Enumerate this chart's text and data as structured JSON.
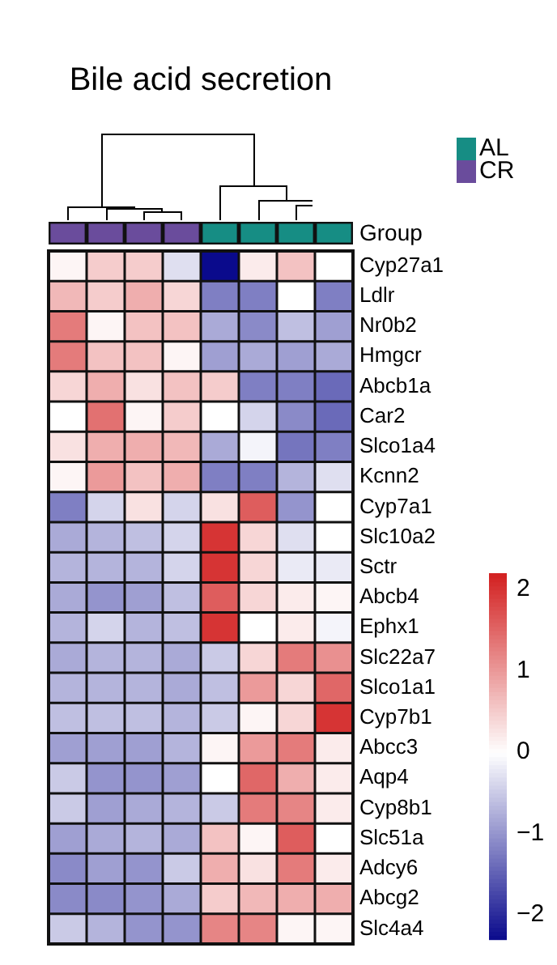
{
  "chart_data": {
    "type": "heatmap",
    "title": "Bile acid secretion",
    "categories": [
      null,
      null,
      null,
      null,
      null,
      null,
      null,
      null
    ],
    "y_categories": [
      "Cyp27a1",
      "Ldlr",
      "Nr0b2",
      "Hmgcr",
      "Abcb1a",
      "Car2",
      "Slco1a4",
      "Kcnn2",
      "Cyp7a1",
      "Slc10a2",
      "Sctr",
      "Abcb4",
      "Ephx1",
      "Slc22a7",
      "Slco1a1",
      "Cyp7b1",
      "Abcc3",
      "Aqp4",
      "Cyp8b1",
      "Slc51a",
      "Adcy6",
      "Abcg2",
      "Slc4a4"
    ],
    "cells": [
      [
        0.1,
        0.5,
        0.5,
        -0.3,
        -2.3,
        0.2,
        0.6,
        0.0
      ],
      [
        0.7,
        0.5,
        0.8,
        0.4,
        -1.2,
        -1.2,
        0.0,
        -1.2
      ],
      [
        1.3,
        0.1,
        0.6,
        0.6,
        -0.8,
        -1.1,
        -0.6,
        -0.9
      ],
      [
        1.3,
        0.6,
        0.6,
        0.1,
        -0.9,
        -0.8,
        -0.9,
        -0.8
      ],
      [
        0.4,
        0.8,
        0.3,
        0.6,
        0.5,
        -1.2,
        -1.2,
        -1.4
      ],
      [
        0.0,
        1.4,
        0.1,
        0.5,
        0.0,
        -0.4,
        -1.1,
        -1.4
      ],
      [
        0.3,
        0.8,
        0.8,
        0.7,
        -0.8,
        -0.1,
        -1.3,
        -1.2
      ],
      [
        0.1,
        1.0,
        0.6,
        0.8,
        -1.2,
        -1.2,
        -0.7,
        -0.3
      ],
      [
        -1.2,
        -0.4,
        0.3,
        -0.4,
        0.3,
        1.6,
        -1.0,
        0.0
      ],
      [
        -0.8,
        -0.7,
        -0.6,
        -0.4,
        2.0,
        0.4,
        -0.3,
        0.0
      ],
      [
        -0.7,
        -0.7,
        -0.7,
        -0.4,
        2.0,
        0.4,
        -0.2,
        -0.2
      ],
      [
        -0.8,
        -1.0,
        -0.9,
        -0.6,
        1.6,
        0.4,
        0.2,
        0.1
      ],
      [
        -0.7,
        -0.4,
        -0.7,
        -0.6,
        2.0,
        0.0,
        0.2,
        -0.1
      ],
      [
        -0.8,
        -0.7,
        -0.7,
        -0.8,
        -0.5,
        0.4,
        1.3,
        1.1
      ],
      [
        -0.7,
        -0.7,
        -0.7,
        -0.8,
        -0.6,
        1.0,
        0.4,
        1.5
      ],
      [
        -0.6,
        -0.6,
        -0.6,
        -0.7,
        -0.5,
        0.1,
        0.4,
        2.0
      ],
      [
        -0.9,
        -0.9,
        -0.9,
        -0.7,
        0.1,
        1.0,
        1.3,
        0.2
      ],
      [
        -0.5,
        -1.0,
        -1.0,
        -0.9,
        0.0,
        1.5,
        0.8,
        0.2
      ],
      [
        -0.5,
        -0.9,
        -0.8,
        -0.7,
        -0.5,
        1.3,
        1.2,
        0.2
      ],
      [
        -0.9,
        -0.8,
        -0.7,
        -0.8,
        0.6,
        0.1,
        1.6,
        0.0
      ],
      [
        -1.1,
        -0.9,
        -1.0,
        -0.5,
        0.8,
        0.3,
        1.3,
        0.2
      ],
      [
        -1.1,
        -1.1,
        -1.0,
        -0.8,
        0.5,
        0.7,
        0.8,
        0.8
      ],
      [
        -0.5,
        -0.7,
        -1.0,
        -1.0,
        1.2,
        1.2,
        0.1,
        0.1
      ]
    ],
    "clim": [
      -2.3,
      2.2
    ],
    "cticks": [
      {
        "value": -2,
        "label": "−2"
      },
      {
        "value": -1,
        "label": "−1"
      },
      0,
      1,
      2
    ],
    "annotations": [
      "Group",
      "AL",
      "CR"
    ]
  }
}
